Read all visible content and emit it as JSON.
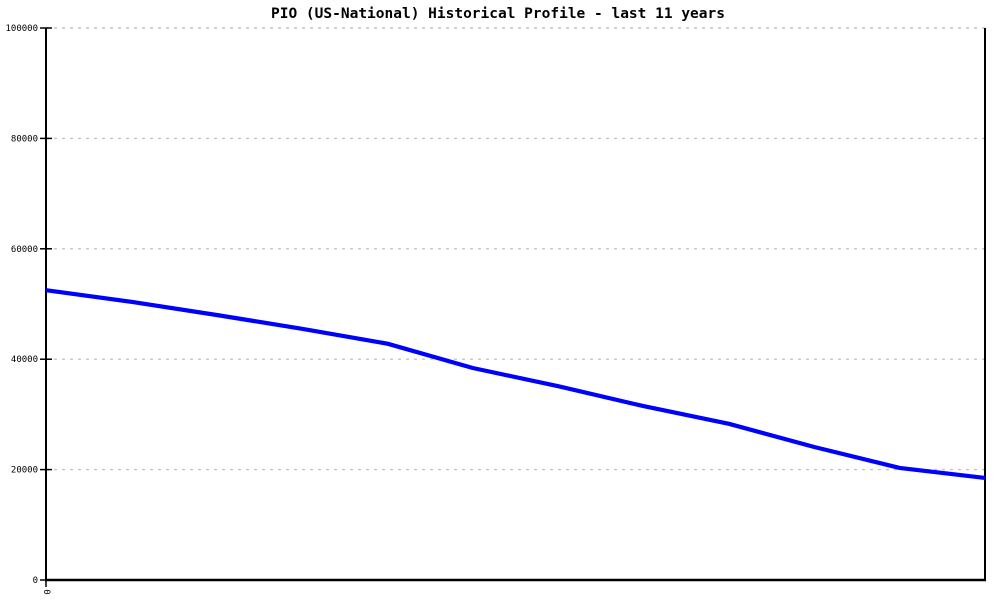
{
  "title": "PIO (US-National) Historical Profile - last 11 years",
  "colors": {
    "line": "#0000ff",
    "grid": "#c4c4c4",
    "axis": "#000000",
    "background": "#ffffff",
    "text": "#000000"
  },
  "chart_data": {
    "type": "line",
    "title": "PIO (US-National) Historical Profile - last 11 years",
    "x": [
      0,
      1,
      2,
      3,
      4,
      5,
      6,
      7,
      8,
      9,
      10,
      11
    ],
    "values": [
      52500,
      50400,
      48000,
      45500,
      42800,
      38400,
      35100,
      31500,
      28300,
      24100,
      20300,
      18500
    ],
    "xlabel": "",
    "ylabel": "",
    "ylim": [
      0,
      100000
    ],
    "yticks": [
      0,
      20000,
      40000,
      60000,
      80000,
      100000
    ],
    "ytick_labels": [
      "0",
      "20000",
      "40000",
      "60000",
      "80000",
      "100000"
    ],
    "xtick_labels_visible": [
      "0"
    ],
    "grid": "horizontal-dotted",
    "legend": "none"
  }
}
